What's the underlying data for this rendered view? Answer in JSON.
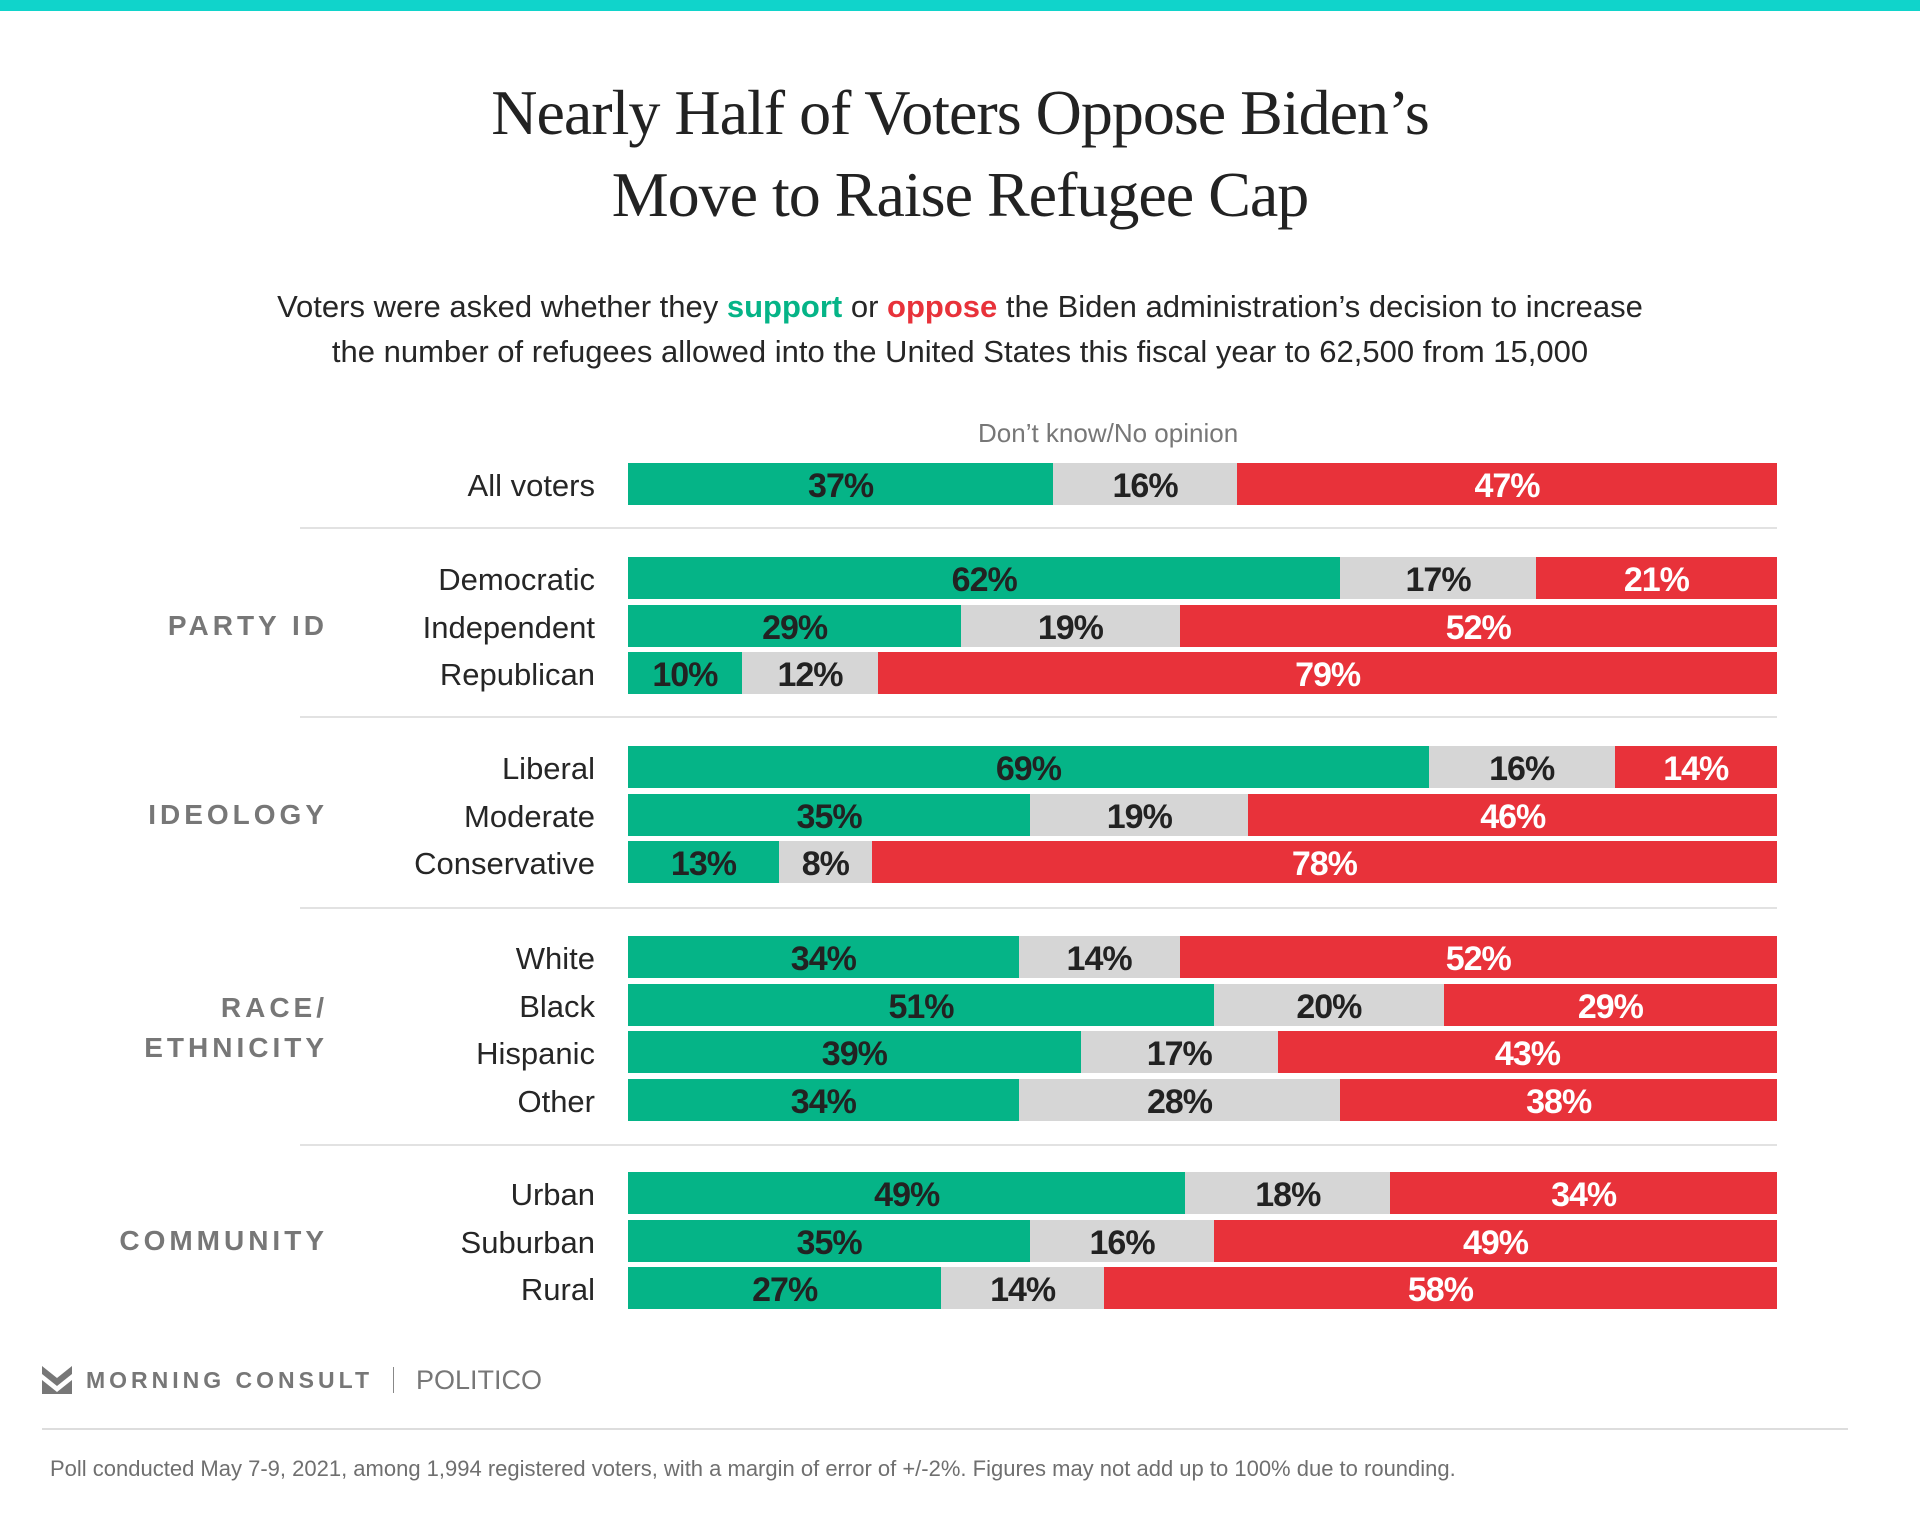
{
  "header": {
    "title_line1": "Nearly Half of Voters Oppose Biden’s",
    "title_line2": "Move to Raise Refugee Cap",
    "subtitle_pre": "Voters were asked whether they ",
    "subtitle_support": "support",
    "subtitle_mid": " or ",
    "subtitle_oppose": "oppose",
    "subtitle_post": " the Biden administration’s decision to increase",
    "subtitle_line2": "the number of refugees allowed into the United States this fiscal year to 62,500 from 15,000"
  },
  "colors": {
    "accent_bar": "#10d4cb",
    "support": "#05b487",
    "dont_know": "#d6d6d6",
    "oppose": "#e8323a"
  },
  "footer": {
    "brand": "MORNING CONSULT",
    "partner": "POLITICO",
    "note": "Poll conducted May 7-9, 2021, among 1,994 registered voters, with a margin of error of +/-2%. Figures may not add up to 100% due to rounding."
  },
  "chart_data": {
    "type": "bar",
    "orientation": "horizontal-stacked-100",
    "title": "Nearly Half of Voters Oppose Biden’s Move to Raise Refugee Cap",
    "series": [
      {
        "name": "Support",
        "color": "#05b487"
      },
      {
        "name": "Don’t know/No opinion",
        "color": "#d6d6d6"
      },
      {
        "name": "Oppose",
        "color": "#e8323a"
      }
    ],
    "annotation": "Don’t know/No opinion",
    "xlim": [
      0,
      100
    ],
    "groups": [
      {
        "label": "",
        "rows": [
          {
            "label": "All voters",
            "values": [
              37,
              16,
              47
            ]
          }
        ]
      },
      {
        "label": "PARTY ID",
        "rows": [
          {
            "label": "Democratic",
            "values": [
              62,
              17,
              21
            ]
          },
          {
            "label": "Independent",
            "values": [
              29,
              19,
              52
            ]
          },
          {
            "label": "Republican",
            "values": [
              10,
              12,
              79
            ]
          }
        ]
      },
      {
        "label": "IDEOLOGY",
        "rows": [
          {
            "label": "Liberal",
            "values": [
              69,
              16,
              14
            ]
          },
          {
            "label": "Moderate",
            "values": [
              35,
              19,
              46
            ]
          },
          {
            "label": "Conservative",
            "values": [
              13,
              8,
              78
            ]
          }
        ]
      },
      {
        "label": "RACE/\nETHNICITY",
        "rows": [
          {
            "label": "White",
            "values": [
              34,
              14,
              52
            ]
          },
          {
            "label": "Black",
            "values": [
              51,
              20,
              29
            ]
          },
          {
            "label": "Hispanic",
            "values": [
              39,
              17,
              43
            ]
          },
          {
            "label": "Other",
            "values": [
              34,
              28,
              38
            ]
          }
        ]
      },
      {
        "label": "COMMUNITY",
        "rows": [
          {
            "label": "Urban",
            "values": [
              49,
              18,
              34
            ]
          },
          {
            "label": "Suburban",
            "values": [
              35,
              16,
              49
            ]
          },
          {
            "label": "Rural",
            "values": [
              27,
              14,
              58
            ]
          }
        ]
      }
    ]
  }
}
